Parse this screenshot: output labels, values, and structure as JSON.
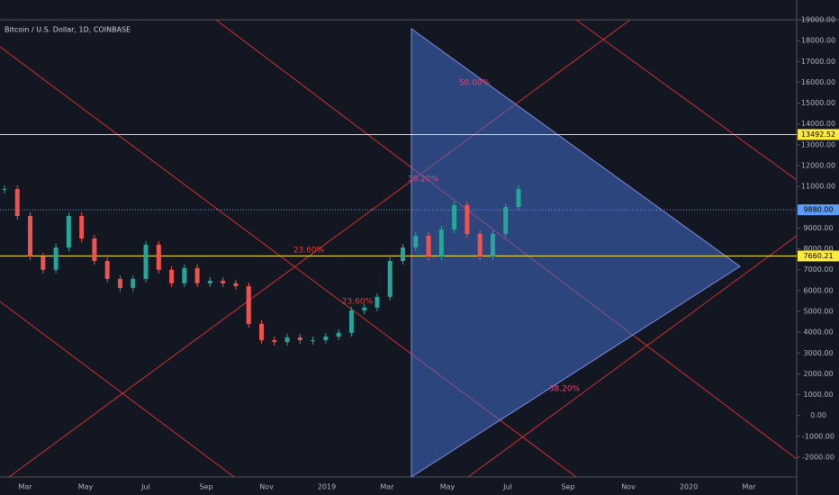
{
  "chart_data": {
    "type": "candlestick",
    "title": "Bitcoin / U.S. Dollar, 1D, COINBASE",
    "values": [
      10880,
      9580,
      7640,
      7000,
      8070,
      9580,
      8500,
      7420,
      6560,
      6130,
      6560,
      8200,
      7000,
      6350,
      7080,
      6350,
      6470,
      6350,
      6210,
      4400,
      3620,
      3530,
      3750,
      3620,
      3620,
      3790,
      3970,
      5050,
      5180,
      5700,
      7420,
      8070,
      8630,
      7640,
      8930,
      10100,
      8720,
      7640,
      8720,
      10010,
      10880
    ],
    "up_color": "#26a69a",
    "down_color": "#ef5350",
    "ylim": [
      -2000,
      19000
    ],
    "yticks": [
      {
        "value": 19000,
        "label": "19000.00"
      },
      {
        "value": 18000,
        "label": "18000.00"
      },
      {
        "value": 17000,
        "label": "17000.00"
      },
      {
        "value": 16000,
        "label": "16000.00"
      },
      {
        "value": 15000,
        "label": "15000.00"
      },
      {
        "value": 14000,
        "label": "14000.00"
      },
      {
        "value": 13000,
        "label": "13000.00"
      },
      {
        "value": 12000,
        "label": "12000.00"
      },
      {
        "value": 11000,
        "label": "11000.00"
      },
      {
        "value": 10000,
        "label": "10000.00"
      },
      {
        "value": 9000,
        "label": "9000.00"
      },
      {
        "value": 8000,
        "label": "8000.00"
      },
      {
        "value": 7000,
        "label": "7000.00"
      },
      {
        "value": 6000,
        "label": "6000.00"
      },
      {
        "value": 5000,
        "label": "5000.00"
      },
      {
        "value": 4000,
        "label": "4000.00"
      },
      {
        "value": 3000,
        "label": "3000.00"
      },
      {
        "value": 2000,
        "label": "2000.00"
      },
      {
        "value": 1000,
        "label": "1000.00"
      },
      {
        "value": 0,
        "label": "0.00"
      },
      {
        "value": -1000,
        "label": "-1000.00"
      },
      {
        "value": -2000,
        "label": "-2000.00"
      }
    ],
    "x_labels": [
      "Mar",
      "May",
      "Jul",
      "Sep",
      "Nov",
      "2019",
      "Mar",
      "May",
      "Jul",
      "Sep",
      "Nov",
      "2020",
      "Mar"
    ],
    "price_lines": [
      {
        "value": 13492.52,
        "label": "13492.52",
        "color": "#ffeb3b"
      },
      {
        "value": 9880,
        "label": "9880.00",
        "color": "#5b9cf6"
      },
      {
        "value": 7660.21,
        "label": "7660.21",
        "color": "#ffeb3b"
      }
    ],
    "fib_labels": [
      "50.00%",
      "38.20%",
      "23.60%",
      "23.60%",
      "38.20%"
    ]
  }
}
